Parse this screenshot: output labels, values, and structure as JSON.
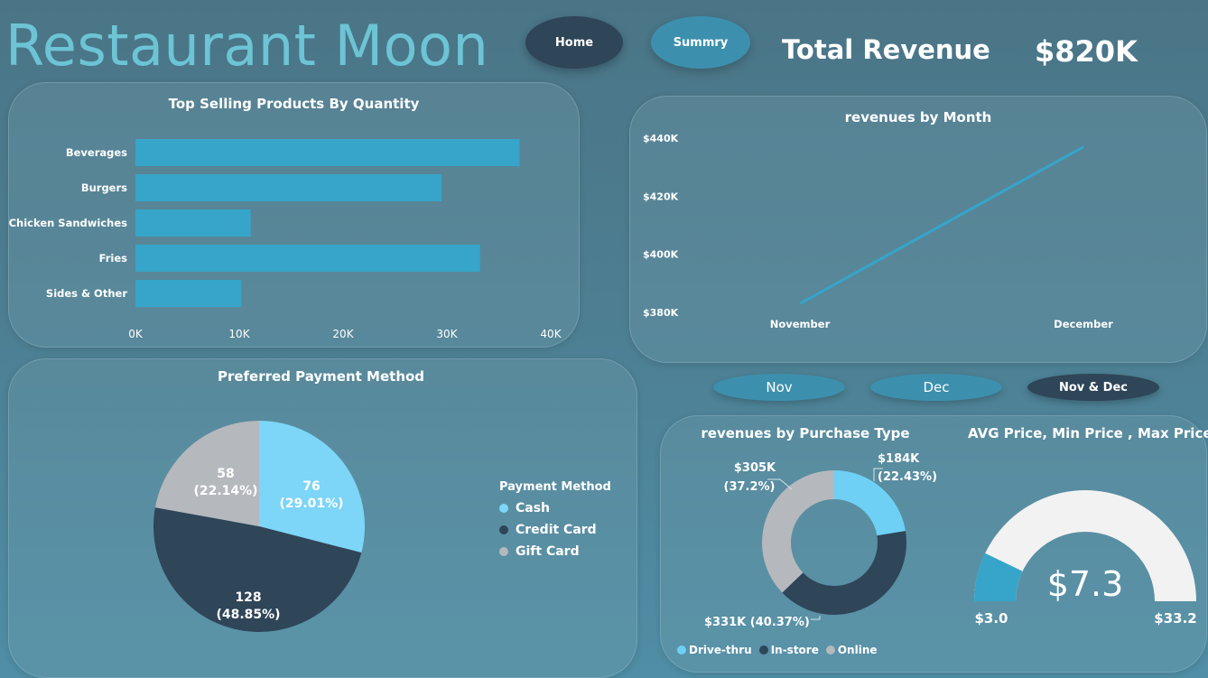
{
  "header": {
    "title": "Restaurant Moon",
    "nav": {
      "home": "Home",
      "summary": "Summry"
    },
    "kpi_label": "Total Revenue",
    "kpi_value": "$820K"
  },
  "filters": {
    "nov": "Nov",
    "dec": "Dec",
    "both": "Nov & Dec"
  },
  "colors": {
    "bar": "#36a5c9",
    "line": "#36a5c9",
    "cash": "#7dd5f7",
    "credit_card": "#2f4558",
    "gift_card": "#b5b8bd",
    "drive_thru": "#6fd0f5",
    "in_store": "#2f4558",
    "online": "#b5b8bd",
    "gauge_fill": "#36a5c9",
    "gauge_track": "#f2f2f2",
    "home_button": "#2f4558",
    "summary_button": "#3d90ad"
  },
  "chart_data": [
    {
      "id": "top-products",
      "type": "bar",
      "orientation": "horizontal",
      "title": "Top Selling Products By Quantity",
      "categories": [
        "Beverages",
        "Burgers",
        "Chicken Sandwiches",
        "Fries",
        "Sides & Other"
      ],
      "values": [
        37000,
        29500,
        11100,
        33200,
        10200
      ],
      "xlim": [
        0,
        40000
      ],
      "xticks": [
        {
          "value": 0,
          "label": "0K"
        },
        {
          "value": 10000,
          "label": "10K"
        },
        {
          "value": 20000,
          "label": "20K"
        },
        {
          "value": 30000,
          "label": "30K"
        },
        {
          "value": 40000,
          "label": "40K"
        }
      ],
      "grid": false
    },
    {
      "id": "revenue-by-month",
      "type": "line",
      "title": "revenues by Month",
      "categories": [
        "November",
        "December"
      ],
      "values": [
        383000,
        437000
      ],
      "ylim": [
        380000,
        440000
      ],
      "yticks": [
        {
          "value": 440000,
          "label": "$440K"
        },
        {
          "value": 420000,
          "label": "$420K"
        },
        {
          "value": 400000,
          "label": "$400K"
        },
        {
          "value": 380000,
          "label": "$380K"
        }
      ],
      "grid": false
    },
    {
      "id": "payment-method",
      "type": "pie",
      "title": "Preferred Payment Method",
      "legend_title": "Payment Method",
      "legend_position": "right",
      "slices": [
        {
          "name": "Cash",
          "value": 76,
          "label": "76",
          "percent": "(29.01%)",
          "color_key": "cash"
        },
        {
          "name": "Credit Card",
          "value": 128,
          "label": "128",
          "percent": "(48.85%)",
          "color_key": "credit_card"
        },
        {
          "name": "Gift Card",
          "value": 58,
          "label": "58",
          "percent": "(22.14%)",
          "color_key": "gift_card"
        }
      ]
    },
    {
      "id": "purchase-type",
      "type": "pie",
      "donut": true,
      "title": "revenues by Purchase Type",
      "legend_position": "bottom",
      "slices": [
        {
          "name": "Drive-thru",
          "value": 184,
          "label": "$184K",
          "percent": "(22.43%)",
          "color_key": "drive_thru"
        },
        {
          "name": "In-store",
          "value": 331,
          "label": "$331K (40.37%)",
          "percent": "",
          "color_key": "in_store"
        },
        {
          "name": "Online",
          "value": 305,
          "label": "$305K",
          "percent": "(37.2%)",
          "color_key": "online"
        }
      ]
    },
    {
      "id": "price-gauge",
      "type": "gauge",
      "title": "AVG Price, Min Price , Max Price",
      "value": 7.3,
      "value_label": "$7.3",
      "min": 3.0,
      "min_label": "$3.0",
      "max": 33.2,
      "max_label": "$33.2"
    }
  ]
}
